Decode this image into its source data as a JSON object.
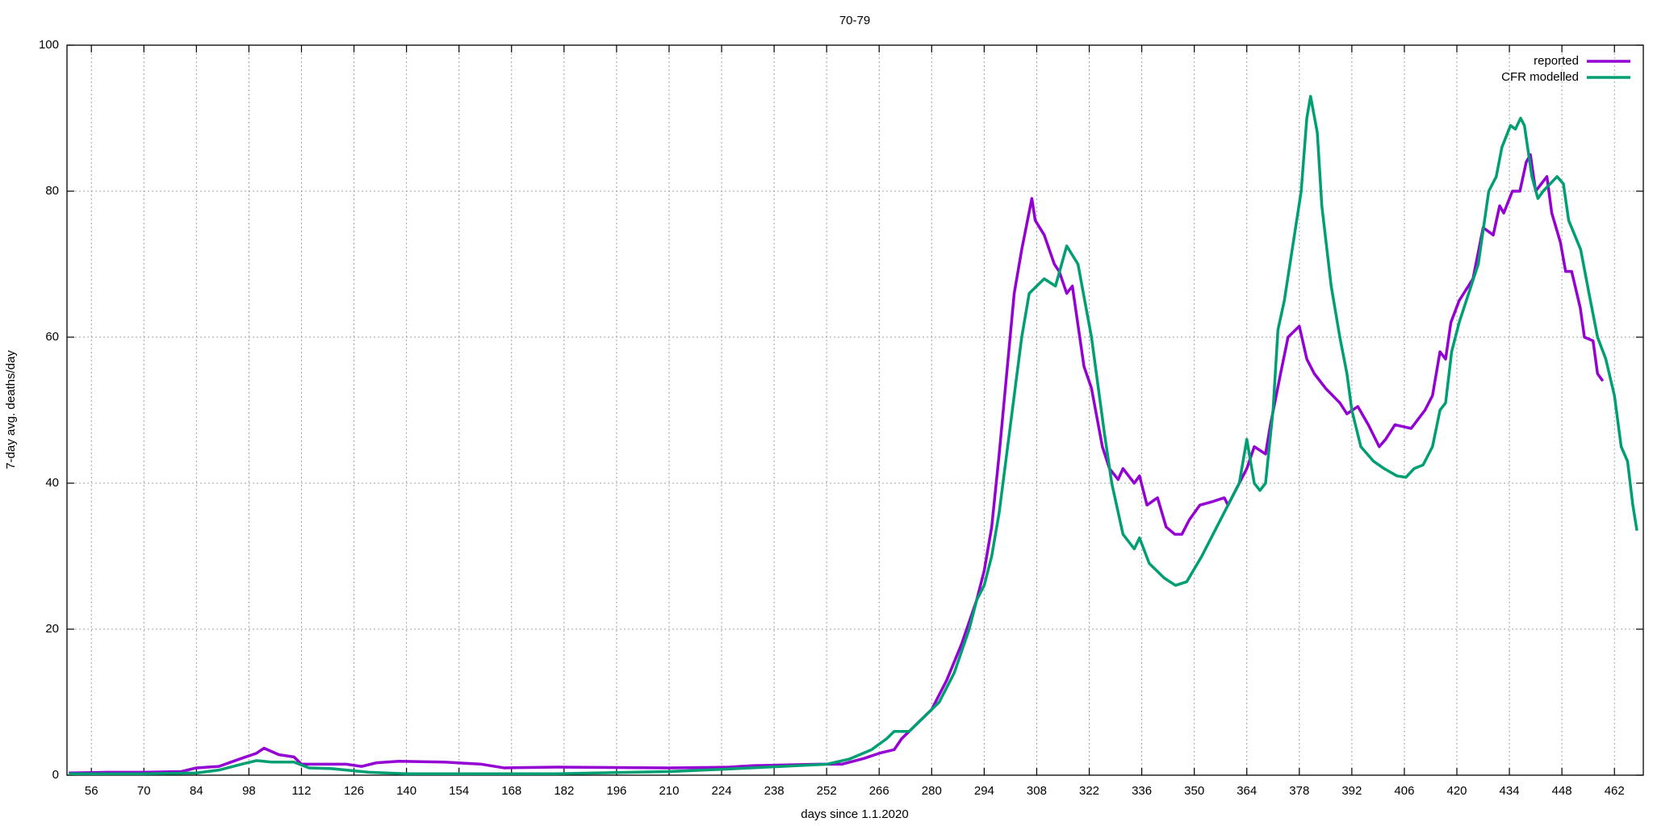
{
  "chart_data": {
    "type": "line",
    "title": "70-79",
    "x_label": "days since 1.1.2020",
    "y_label": "7-day avg. deaths/day",
    "xlim": [
      49.5,
      469.7
    ],
    "ylim": [
      0,
      100
    ],
    "xticks": [
      56,
      70,
      84,
      98,
      112,
      126,
      140,
      154,
      168,
      182,
      196,
      210,
      224,
      238,
      252,
      266,
      280,
      294,
      308,
      322,
      336,
      350,
      364,
      378,
      392,
      406,
      420,
      434,
      448,
      462
    ],
    "yticks": [
      0,
      20,
      40,
      60,
      80,
      100
    ],
    "grid": true,
    "legend": "top right",
    "series": [
      {
        "name": "reported",
        "color": "#9400d3",
        "x": [
          50,
          60,
          70,
          80,
          84,
          90,
          96,
          100,
          102,
          106,
          110,
          112,
          118,
          124,
          128,
          132,
          138,
          150,
          160,
          166,
          180,
          210,
          226,
          232,
          250,
          256,
          262,
          266,
          270,
          272,
          276,
          280,
          284,
          288,
          290,
          292,
          294,
          296,
          298,
          300,
          302,
          304,
          306.7,
          307.6,
          310,
          312.7,
          314,
          316,
          317.5,
          320.6,
          322.6,
          325.5,
          327.4,
          329.7,
          331,
          334,
          335.4,
          337.4,
          340.2,
          342.5,
          344.8,
          346.7,
          348.7,
          351.5,
          355,
          358,
          359,
          362,
          364,
          366,
          369,
          370.3,
          373,
          375,
          378,
          380,
          382,
          385,
          388.8,
          390.7,
          393.6,
          396.4,
          399.3,
          401,
          403.5,
          407.8,
          411.5,
          413.5,
          415.5,
          417,
          418.4,
          420.6,
          424.3,
          427,
          429.7,
          431.4,
          432.5,
          434.8,
          436.8,
          438.5,
          439.6,
          441,
          444,
          445.3,
          447.6,
          449,
          450.6,
          452.9,
          454,
          456.3,
          457.5,
          458.9
        ],
        "values": [
          0.3,
          0.4,
          0.4,
          0.5,
          1,
          1.2,
          2.3,
          3,
          3.7,
          2.8,
          2.5,
          1.5,
          1.5,
          1.5,
          1.2,
          1.7,
          1.9,
          1.8,
          1.5,
          1.0,
          1.1,
          1.0,
          1.1,
          1.3,
          1.5,
          1.5,
          2.3,
          3,
          3.5,
          5,
          7,
          9,
          13,
          18,
          21,
          24,
          28,
          34,
          44,
          55,
          66,
          72,
          79,
          76,
          74,
          70,
          69,
          66,
          67,
          56,
          53,
          45,
          42,
          40.5,
          42,
          40,
          41,
          37,
          38,
          34,
          33,
          33,
          35,
          37,
          37.5,
          38,
          37,
          40,
          42,
          45,
          44,
          48,
          55,
          60,
          61.5,
          57,
          55,
          53,
          51,
          49.5,
          50.5,
          48,
          45,
          46,
          48,
          47.5,
          50,
          52,
          58,
          57,
          62,
          65,
          68,
          75,
          74,
          78,
          77,
          80,
          80,
          84,
          85,
          80,
          82,
          77,
          73,
          69,
          69,
          64,
          60,
          59.5,
          55,
          54
        ]
      },
      {
        "name": "CFR modelled",
        "color": "#009e73",
        "x": [
          50,
          70,
          84,
          90,
          96,
          100,
          104,
          110,
          114,
          120,
          130,
          140,
          180,
          210,
          224,
          240,
          252,
          258,
          264,
          268,
          270,
          274,
          278,
          282,
          286,
          288,
          290,
          292,
          294,
          296,
          298,
          300,
          302,
          304,
          306,
          308,
          310,
          313,
          316,
          319,
          322.6,
          326,
          328,
          331,
          334,
          335.4,
          338,
          342,
          345,
          348,
          352,
          355,
          358,
          362,
          364,
          366,
          367.5,
          369,
          371,
          372.3,
          374,
          377,
          378.5,
          380,
          381,
          382.8,
          384,
          386.5,
          388.8,
          390.7,
          392,
          394.4,
          397.8,
          400.6,
          404,
          406.4,
          408.6,
          411,
          413.5,
          415.5,
          417,
          418.6,
          420.6,
          425.7,
          428.5,
          430.5,
          432,
          434.3,
          435.6,
          437,
          438,
          440,
          441.6,
          443,
          446.7,
          448.4,
          449.8,
          453,
          455.6,
          457.5,
          459.7,
          462,
          463.8,
          465.5,
          466.9,
          468
        ],
        "values": [
          0.2,
          0.2,
          0.3,
          0.7,
          1.5,
          2,
          1.8,
          1.8,
          1.0,
          0.9,
          0.4,
          0.2,
          0.2,
          0.5,
          0.8,
          1.2,
          1.5,
          2.2,
          3.5,
          5,
          6,
          6,
          8,
          10,
          14,
          17,
          20,
          24,
          26,
          30,
          36,
          44,
          52,
          60,
          66,
          67,
          68,
          67,
          72.5,
          70,
          60,
          47,
          40,
          33,
          31,
          32.5,
          29,
          27,
          26,
          26.5,
          30,
          33,
          36,
          40,
          46,
          40,
          39,
          40,
          50,
          61,
          65,
          75,
          80,
          90,
          93,
          88,
          78,
          67,
          60,
          55,
          50,
          45,
          43,
          42,
          41,
          40.8,
          42,
          42.5,
          45,
          50,
          51,
          58,
          62,
          70,
          80,
          82,
          86,
          89,
          88.5,
          90,
          89,
          82,
          79,
          80,
          82,
          81,
          76,
          72,
          65,
          60,
          57,
          52,
          45,
          43,
          37,
          33.5
        ]
      }
    ]
  }
}
